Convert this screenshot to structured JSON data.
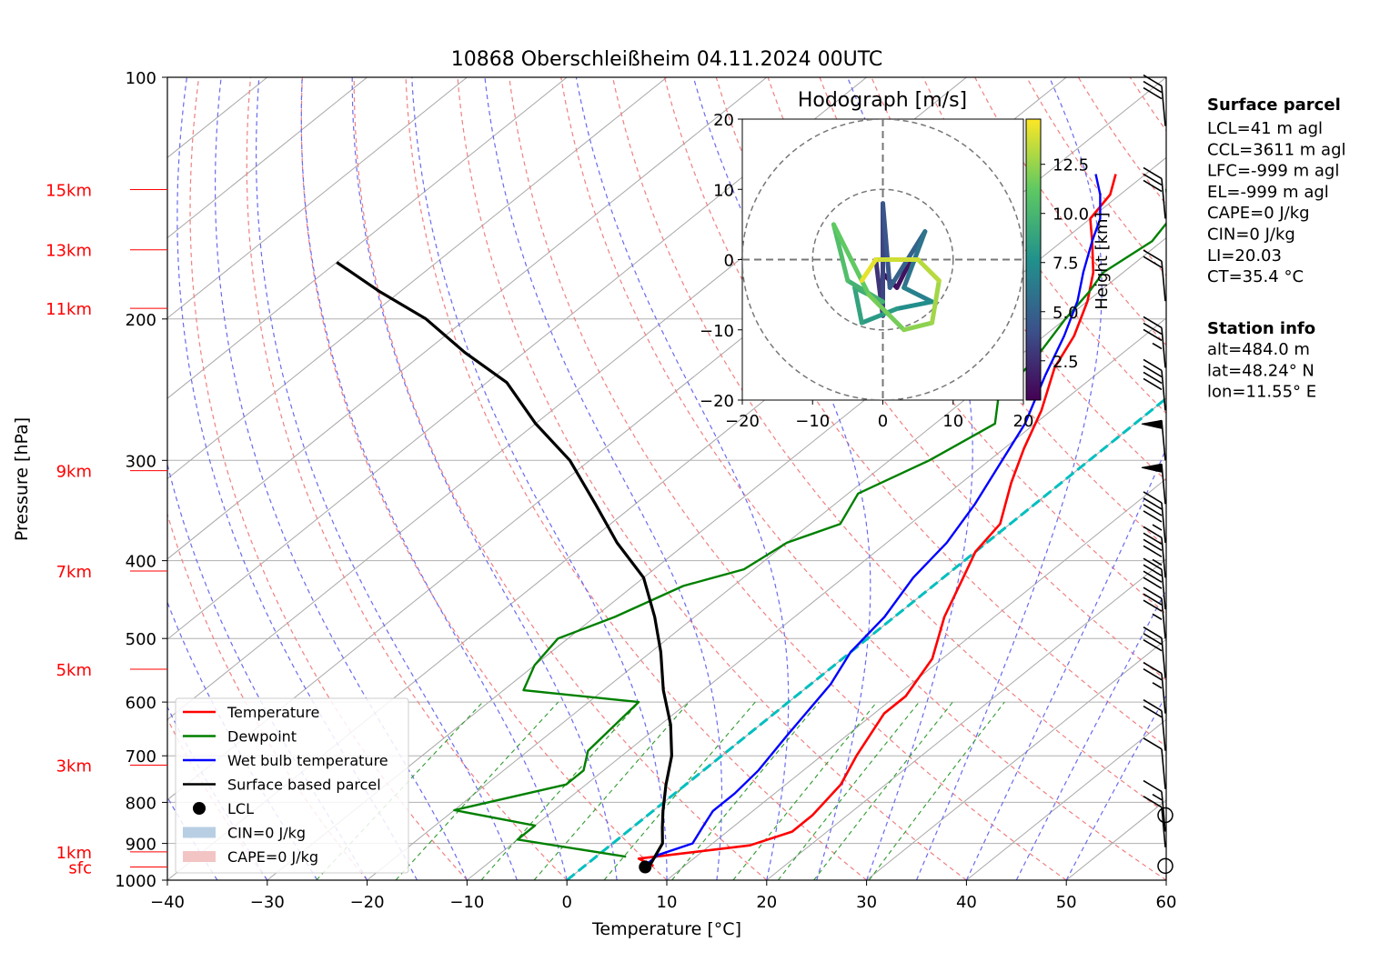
{
  "chart_data": {
    "type": "skew-t",
    "title": "10868 Oberschleißheim 04.11.2024 00UTC",
    "xlabel": "Temperature [°C]",
    "ylabel": "Pressure [hPa]",
    "x_ticks": [
      -40,
      -30,
      -20,
      -10,
      0,
      10,
      20,
      30,
      40,
      50,
      60
    ],
    "xlim": [
      -40,
      60
    ],
    "y_ticks": [
      100,
      200,
      300,
      400,
      500,
      600,
      700,
      800,
      900,
      1000
    ],
    "ylim": [
      1000,
      100
    ],
    "y_scale": "log",
    "height_markers": [
      {
        "label": "15km",
        "p": 138
      },
      {
        "label": "13km",
        "p": 164
      },
      {
        "label": "11km",
        "p": 194
      },
      {
        "label": "9km",
        "p": 309
      },
      {
        "label": "7km",
        "p": 412
      },
      {
        "label": "5km",
        "p": 546
      },
      {
        "label": "3km",
        "p": 719
      },
      {
        "label": "1km",
        "p": 922
      },
      {
        "label": "sfc",
        "p": 963
      }
    ],
    "series": [
      {
        "name": "Temperature",
        "color": "#ff0000",
        "points": [
          [
            6.9,
            960
          ],
          [
            4.5,
            940
          ],
          [
            14,
            905
          ],
          [
            16.5,
            870
          ],
          [
            16.5,
            830
          ],
          [
            15.5,
            760
          ],
          [
            13.5,
            700
          ],
          [
            11,
            620
          ],
          [
            11,
            590
          ],
          [
            9,
            530
          ],
          [
            5,
            470
          ],
          [
            2,
            420
          ],
          [
            0,
            390
          ],
          [
            -1,
            360
          ],
          [
            -5,
            320
          ],
          [
            -8,
            290
          ],
          [
            -11,
            260
          ],
          [
            -15,
            230
          ],
          [
            -17,
            210
          ],
          [
            -20,
            190
          ],
          [
            -23,
            175
          ],
          [
            -27,
            160
          ],
          [
            -30,
            150
          ],
          [
            -31,
            140
          ],
          [
            -33,
            132
          ]
        ]
      },
      {
        "name": "Dewpoint",
        "color": "#008000",
        "points": [
          [
            3,
            935
          ],
          [
            -10,
            890
          ],
          [
            -10,
            855
          ],
          [
            -20,
            818
          ],
          [
            -12,
            760
          ],
          [
            -12,
            730
          ],
          [
            -14,
            690
          ],
          [
            -15,
            600
          ],
          [
            -28,
            580
          ],
          [
            -30,
            540
          ],
          [
            -31,
            500
          ],
          [
            -28,
            470
          ],
          [
            -25,
            430
          ],
          [
            -21,
            410
          ],
          [
            -20,
            380
          ],
          [
            -17,
            360
          ],
          [
            -19,
            330
          ],
          [
            -16,
            300
          ],
          [
            -14,
            270
          ],
          [
            -17,
            250
          ],
          [
            -18,
            225
          ],
          [
            -20,
            200
          ],
          [
            -21,
            185
          ],
          [
            -22,
            175
          ],
          [
            -21,
            160
          ],
          [
            -22,
            150
          ],
          [
            -26,
            138
          ],
          [
            -24,
            130
          ]
        ]
      },
      {
        "name": "Wet bulb temperature",
        "color": "#0000ff",
        "points": [
          [
            6,
            955
          ],
          [
            6,
            930
          ],
          [
            8,
            900
          ],
          [
            7,
            860
          ],
          [
            6,
            820
          ],
          [
            6,
            780
          ],
          [
            5.5,
            730
          ],
          [
            4,
            660
          ],
          [
            2,
            570
          ],
          [
            0,
            520
          ],
          [
            -1,
            470
          ],
          [
            -3,
            420
          ],
          [
            -4,
            380
          ],
          [
            -6,
            340
          ],
          [
            -8,
            310
          ],
          [
            -11,
            270
          ],
          [
            -15,
            235
          ],
          [
            -18,
            210
          ],
          [
            -21,
            190
          ],
          [
            -24,
            175
          ],
          [
            -27,
            160
          ],
          [
            -29,
            150
          ],
          [
            -32,
            140
          ],
          [
            -35,
            132
          ]
        ]
      },
      {
        "name": "Surface based parcel",
        "color": "#000000",
        "points": [
          [
            6.5,
            960
          ],
          [
            5,
            900
          ],
          [
            3,
            860
          ],
          [
            1,
            820
          ],
          [
            -2,
            760
          ],
          [
            -5,
            700
          ],
          [
            -9,
            640
          ],
          [
            -14,
            580
          ],
          [
            -19,
            520
          ],
          [
            -24,
            470
          ],
          [
            -30,
            420
          ],
          [
            -37,
            380
          ],
          [
            -44,
            340
          ],
          [
            -52,
            300
          ],
          [
            -60,
            270
          ],
          [
            -68,
            240
          ],
          [
            -76,
            220
          ],
          [
            -84,
            200
          ],
          [
            -92,
            185
          ],
          [
            -100,
            170
          ]
        ]
      }
    ],
    "lcl_point": {
      "name": "LCL",
      "t": 6.2,
      "p": 963
    },
    "legend": {
      "placement": "lower-left",
      "items": [
        {
          "label": "Temperature",
          "kind": "line",
          "color": "#ff0000"
        },
        {
          "label": "Dewpoint",
          "kind": "line",
          "color": "#008000"
        },
        {
          "label": "Wet bulb temperature",
          "kind": "line",
          "color": "#0000ff"
        },
        {
          "label": "Surface based parcel",
          "kind": "line",
          "color": "#000000"
        },
        {
          "label": "LCL",
          "kind": "dot",
          "color": "#000000"
        },
        {
          "label": "CIN=0 J/kg",
          "kind": "patch",
          "color": "#b8cfe3"
        },
        {
          "label": "CAPE=0 J/kg",
          "kind": "patch",
          "color": "#f3c4c4"
        }
      ]
    },
    "wind_barbs": [
      {
        "p": 960,
        "kind": "calm"
      },
      {
        "p": 910,
        "speed_kt": 10
      },
      {
        "p": 870,
        "speed_kt": 15
      },
      {
        "p": 830,
        "kind": "calm"
      },
      {
        "p": 770,
        "speed_kt": 10
      },
      {
        "p": 690,
        "speed_kt": 20
      },
      {
        "p": 620,
        "speed_kt": 25
      },
      {
        "p": 560,
        "speed_kt": 30
      },
      {
        "p": 500,
        "speed_kt": 35
      },
      {
        "p": 460,
        "speed_kt": 40
      },
      {
        "p": 420,
        "speed_kt": 45
      },
      {
        "p": 380,
        "speed_kt": 45
      },
      {
        "p": 340,
        "speed_kt": 50
      },
      {
        "p": 300,
        "speed_kt": 50
      },
      {
        "p": 260,
        "speed_kt": 40
      },
      {
        "p": 230,
        "speed_kt": 35
      },
      {
        "p": 190,
        "speed_kt": 20
      },
      {
        "p": 150,
        "speed_kt": 30
      },
      {
        "p": 115,
        "speed_kt": 30
      }
    ],
    "hodograph": {
      "title": "Hodograph [m/s]",
      "xlim": [
        -20,
        20
      ],
      "ylim": [
        -20,
        20
      ],
      "x_ticks": [
        -20,
        -10,
        0,
        10,
        20
      ],
      "y_ticks": [
        -20,
        -10,
        0,
        10,
        20
      ],
      "rings": [
        10,
        20
      ],
      "colorbar_label": "Height [km]",
      "colorbar_ticks": [
        2.5,
        5.0,
        7.5,
        10.0,
        12.5
      ],
      "colorbar_range": [
        0.5,
        14.8
      ],
      "trace": [
        {
          "u": 0,
          "v": -2,
          "h": 0.5
        },
        {
          "u": 2,
          "v": -4,
          "h": 1.0
        },
        {
          "u": 4,
          "v": 0,
          "h": 1.5
        },
        {
          "u": 1,
          "v": 0,
          "h": 2.0
        },
        {
          "u": -1,
          "v": 0,
          "h": 2.5
        },
        {
          "u": 0,
          "v": -8,
          "h": 3.0
        },
        {
          "u": 0,
          "v": 8,
          "h": 4.0
        },
        {
          "u": 1,
          "v": -4,
          "h": 4.5
        },
        {
          "u": 6,
          "v": 4,
          "h": 5.5
        },
        {
          "u": 3,
          "v": -4,
          "h": 6.5
        },
        {
          "u": 7,
          "v": -6,
          "h": 7.0
        },
        {
          "u": 2,
          "v": -7,
          "h": 8.0
        },
        {
          "u": -3,
          "v": -9,
          "h": 8.5
        },
        {
          "u": -4,
          "v": -4,
          "h": 9.0
        },
        {
          "u": 0,
          "v": -6,
          "h": 9.5
        },
        {
          "u": -5,
          "v": -3,
          "h": 10.0
        },
        {
          "u": -7,
          "v": 5,
          "h": 11.0
        },
        {
          "u": -2,
          "v": -5,
          "h": 11.5
        },
        {
          "u": 3,
          "v": -10,
          "h": 12.0
        },
        {
          "u": 7,
          "v": -9,
          "h": 12.5
        },
        {
          "u": 8,
          "v": -3,
          "h": 13.0
        },
        {
          "u": 5,
          "v": 0,
          "h": 13.5
        },
        {
          "u": -1,
          "v": 0,
          "h": 14.0
        },
        {
          "u": -3,
          "v": -3,
          "h": 14.5
        }
      ]
    }
  },
  "info": {
    "surface_heading": "Surface parcel",
    "surface_lines": [
      "LCL=41 m agl",
      "CCL=3611 m agl",
      "LFC=-999 m agl",
      "EL=-999 m agl",
      "CAPE=0 J/kg",
      "CIN=0 J/kg",
      "LI=20.03",
      "CT=35.4 °C"
    ],
    "station_heading": "Station info",
    "station_lines": [
      "alt=484.0 m",
      "lat=48.24° N",
      "lon=11.55° E"
    ]
  },
  "colors": {
    "temperature": "#ff0000",
    "dewpoint": "#008000",
    "wetbulb": "#0000ff",
    "parcel": "#000000",
    "ccl_line": "#00bfbf",
    "height_labels": "#ff0000"
  }
}
